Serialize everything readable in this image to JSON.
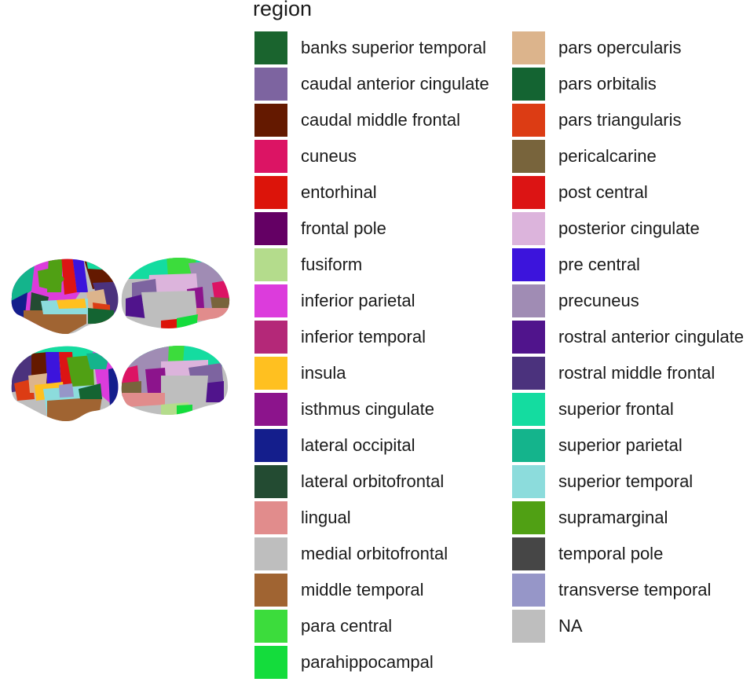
{
  "legend": {
    "title": "region",
    "columns": [
      [
        {
          "label": "banks superior temporal",
          "color": "#1A642E"
        },
        {
          "label": "caudal anterior cingulate",
          "color": "#7D64A0"
        },
        {
          "label": "caudal middle frontal",
          "color": "#641900"
        },
        {
          "label": "cuneus",
          "color": "#DC1464"
        },
        {
          "label": "entorhinal",
          "color": "#DC140A"
        },
        {
          "label": "frontal pole",
          "color": "#640064"
        },
        {
          "label": "fusiform",
          "color": "#B4DC8C"
        },
        {
          "label": "inferior parietal",
          "color": "#DC3CDC"
        },
        {
          "label": "inferior temporal",
          "color": "#B42878"
        },
        {
          "label": "insula",
          "color": "#FFC020"
        },
        {
          "label": "isthmus cingulate",
          "color": "#8C148C"
        },
        {
          "label": "lateral occipital",
          "color": "#141E8C"
        },
        {
          "label": "lateral orbitofrontal",
          "color": "#234B32"
        },
        {
          "label": "lingual",
          "color": "#E18C8C"
        },
        {
          "label": "medial orbitofrontal",
          "color": "#BEBEBE"
        },
        {
          "label": "middle temporal",
          "color": "#A06432"
        },
        {
          "label": "para central",
          "color": "#3CDC3C"
        },
        {
          "label": "parahippocampal",
          "color": "#14DC3C"
        }
      ],
      [
        {
          "label": "pars opercularis",
          "color": "#DCB48C"
        },
        {
          "label": "pars orbitalis",
          "color": "#146432"
        },
        {
          "label": "pars triangularis",
          "color": "#DC3C14"
        },
        {
          "label": "pericalcarine",
          "color": "#78643C"
        },
        {
          "label": "post central",
          "color": "#DC1414"
        },
        {
          "label": "posterior cingulate",
          "color": "#DCB4DC"
        },
        {
          "label": "pre central",
          "color": "#3C14DC"
        },
        {
          "label": "precuneus",
          "color": "#A08CB4"
        },
        {
          "label": "rostral anterior cingulate",
          "color": "#50148C"
        },
        {
          "label": "rostral middle frontal",
          "color": "#4B327D"
        },
        {
          "label": "superior frontal",
          "color": "#14DCA0"
        },
        {
          "label": "superior parietal",
          "color": "#14B48C"
        },
        {
          "label": "superior temporal",
          "color": "#8CDCDC"
        },
        {
          "label": "supramarginal",
          "color": "#50A014"
        },
        {
          "label": "temporal pole",
          "color": "#464646"
        },
        {
          "label": "transverse temporal",
          "color": "#9696C8"
        },
        {
          "label": "NA",
          "color": "#BEBEBE"
        }
      ]
    ]
  }
}
